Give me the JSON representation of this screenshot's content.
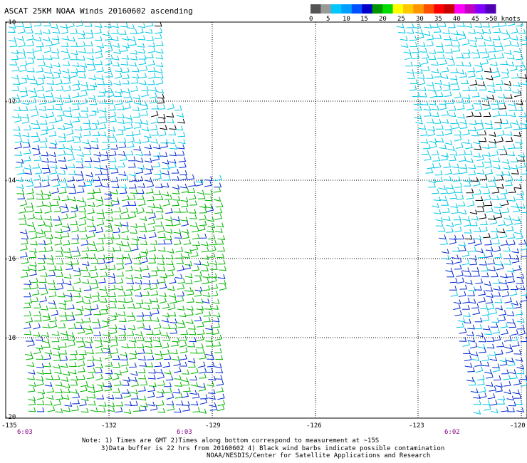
{
  "title": "ASCAT 25KM NOAA Winds 20160602 ascending",
  "legend": {
    "unit_label": ">50 knots",
    "ticks": [
      "0",
      "5",
      "10",
      "15",
      "20",
      "25",
      "30",
      "35",
      "40",
      "45"
    ],
    "colors": [
      "#555555",
      "#999999",
      "#00c8ff",
      "#00a0ff",
      "#0050ff",
      "#0000c8",
      "#009600",
      "#00dc00",
      "#ffff00",
      "#ffc800",
      "#ff9600",
      "#ff5000",
      "#ff0000",
      "#c80000",
      "#ff00ff",
      "#c000c0",
      "#8000ff",
      "#5000b4"
    ]
  },
  "axes": {
    "lat_labels": [
      "-10",
      "-12",
      "-14",
      "-16",
      "-18",
      "-20"
    ],
    "lon_labels": [
      "-135",
      "-132",
      "-129",
      "-126",
      "-123",
      "-120"
    ]
  },
  "pass_times": [
    "6:03",
    "6:03",
    "6:02"
  ],
  "notes": {
    "line1": "Note: 1) Times are GMT 2)Times along bottom correspond to measurement at ~15S",
    "line2": "3)Data buffer is 22 hrs from 20160602 4) Black wind barbs indicate possible contamination",
    "line3": "NOAA/NESDIS/Center for Satellite Applications and Research"
  },
  "colors": {
    "light_blue": "#00c8e6",
    "dark_blue": "#0028d2",
    "green": "#00b400",
    "contaminated": "#000000"
  }
}
